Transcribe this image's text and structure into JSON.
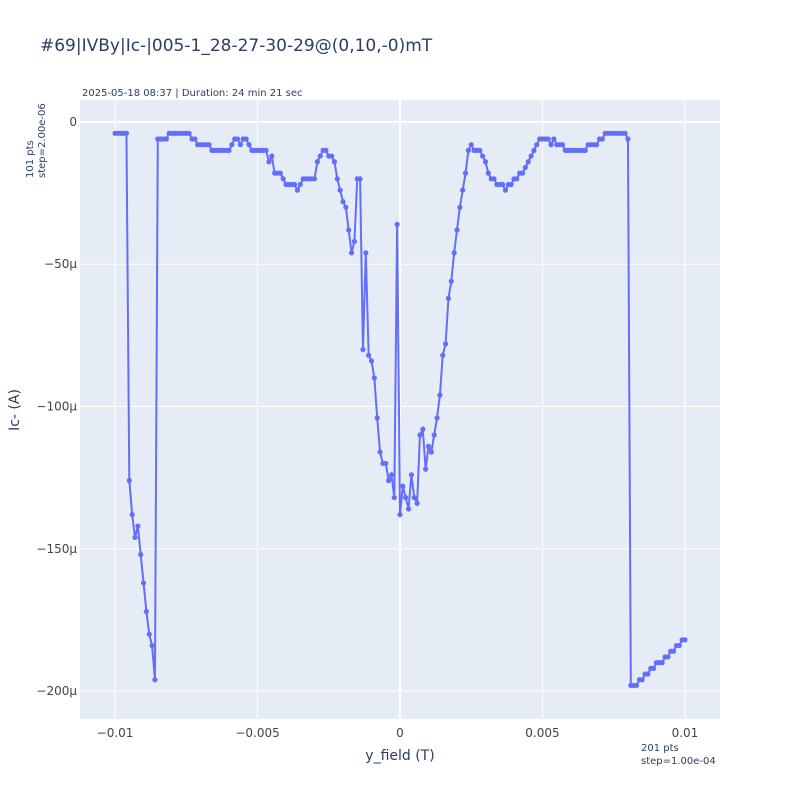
{
  "chart_data": {
    "type": "line",
    "title": "#69|IVBy|Ic-|005-1_28-27-30-29@(0,10,-0)mT",
    "subtitle": "2025-05-18 08:37 | Duration: 24 min 21 sec",
    "y_note": [
      "101 pts",
      "step=2.00e-06"
    ],
    "x_note": [
      "201 pts",
      "step=1.00e-04"
    ],
    "xlabel": "y_field (T)",
    "ylabel": "Ic- (A)",
    "xlim": [
      -0.01123,
      0.01123
    ],
    "ylim": [
      -0.0002098,
      7.7e-06
    ],
    "xticks": [
      {
        "value": -0.01,
        "label": "−0.01"
      },
      {
        "value": -0.005,
        "label": "−0.005"
      },
      0,
      {
        "value": 0.005,
        "label": "0.005"
      },
      {
        "value": 0.01,
        "label": "0.01"
      }
    ],
    "yticks": [
      0,
      {
        "value": -5e-05,
        "label": "−50μ"
      },
      {
        "value": -0.0001,
        "label": "−100μ"
      },
      {
        "value": -0.00015,
        "label": "−150μ"
      },
      {
        "value": -0.0002,
        "label": "−200μ"
      }
    ],
    "grid": true,
    "series": [
      {
        "color": "#636efa",
        "x": [
          -0.01,
          -0.0099,
          -0.0098,
          -0.0097,
          -0.0096,
          -0.0095,
          -0.0094,
          -0.0093,
          -0.0092,
          -0.0091,
          -0.009,
          -0.0089,
          -0.0088,
          -0.0087,
          -0.0086,
          -0.0085,
          -0.0084,
          -0.0083,
          -0.0082,
          -0.0081,
          -0.008,
          -0.0079,
          -0.0078,
          -0.0077,
          -0.0076,
          -0.0075,
          -0.0074,
          -0.0073,
          -0.0072,
          -0.0071,
          -0.007,
          -0.0069,
          -0.0068,
          -0.0067,
          -0.0066,
          -0.0065,
          -0.0064,
          -0.0063,
          -0.0062,
          -0.0061,
          -0.006,
          -0.0059,
          -0.0058,
          -0.0057,
          -0.0056,
          -0.0055,
          -0.0054,
          -0.0053,
          -0.0052,
          -0.0051,
          -0.005,
          -0.0049,
          -0.0048,
          -0.0047,
          -0.0046,
          -0.0045,
          -0.0044,
          -0.0043,
          -0.0042,
          -0.0041,
          -0.004,
          -0.0039,
          -0.0038,
          -0.0037,
          -0.0036,
          -0.0035,
          -0.0034,
          -0.0033,
          -0.0032,
          -0.0031,
          -0.003,
          -0.0029,
          -0.0028,
          -0.0027,
          -0.0026,
          -0.0025,
          -0.0024,
          -0.0023,
          -0.0022,
          -0.0021,
          -0.002,
          -0.0019,
          -0.0018,
          -0.0017,
          -0.0016,
          -0.0015,
          -0.0014,
          -0.0013,
          -0.0012,
          -0.0011,
          -0.001,
          -0.0009,
          -0.0008,
          -0.0007,
          -0.0006,
          -0.0005,
          -0.0004,
          -0.0003,
          -0.0002,
          -0.0001,
          0,
          0.0001,
          0.0002,
          0.0003,
          0.0004,
          0.0005,
          0.0006,
          0.0007,
          0.0008,
          0.0009,
          0.001,
          0.0011,
          0.0012,
          0.0013,
          0.0014,
          0.0015,
          0.0016,
          0.0017,
          0.0018,
          0.0019,
          0.002,
          0.0021,
          0.0022,
          0.0023,
          0.0024,
          0.0025,
          0.0026,
          0.0027,
          0.0028,
          0.0029,
          0.003,
          0.0031,
          0.0032,
          0.0033,
          0.0034,
          0.0035,
          0.0036,
          0.0037,
          0.0038,
          0.0039,
          0.004,
          0.0041,
          0.0042,
          0.0043,
          0.0044,
          0.0045,
          0.0046,
          0.0047,
          0.0048,
          0.0049,
          0.005,
          0.0051,
          0.0052,
          0.0053,
          0.0054,
          0.0055,
          0.0056,
          0.0057,
          0.0058,
          0.0059,
          0.006,
          0.0061,
          0.0062,
          0.0063,
          0.0064,
          0.0065,
          0.0066,
          0.0067,
          0.0068,
          0.0069,
          0.007,
          0.0071,
          0.0072,
          0.0073,
          0.0074,
          0.0075,
          0.0076,
          0.0077,
          0.0078,
          0.0079,
          0.008,
          0.0081,
          0.0082,
          0.0083,
          0.0084,
          0.0085,
          0.0086,
          0.0087,
          0.0088,
          0.0089,
          0.009,
          0.0091,
          0.0092,
          0.0093,
          0.0094,
          0.0095,
          0.0096,
          0.0097,
          0.0098,
          0.0099,
          0.01
        ],
        "values": [
          -4e-06,
          -4e-06,
          -4e-06,
          -4e-06,
          -4e-06,
          -0.000126,
          -0.000138,
          -0.000146,
          -0.000142,
          -0.000152,
          -0.000162,
          -0.000172,
          -0.00018,
          -0.000184,
          -0.000196,
          -6e-06,
          -6e-06,
          -6e-06,
          -6e-06,
          -4e-06,
          -4e-06,
          -4e-06,
          -4e-06,
          -4e-06,
          -4e-06,
          -4e-06,
          -4e-06,
          -6e-06,
          -6e-06,
          -8e-06,
          -8e-06,
          -8e-06,
          -8e-06,
          -8e-06,
          -1e-05,
          -1e-05,
          -1e-05,
          -1e-05,
          -1e-05,
          -1e-05,
          -1e-05,
          -8e-06,
          -6e-06,
          -6e-06,
          -8e-06,
          -6e-06,
          -6e-06,
          -8e-06,
          -1e-05,
          -1e-05,
          -1e-05,
          -1e-05,
          -1e-05,
          -1e-05,
          -1.4e-05,
          -1.2e-05,
          -1.8e-05,
          -1.8e-05,
          -1.8e-05,
          -2e-05,
          -2.2e-05,
          -2.2e-05,
          -2.2e-05,
          -2.2e-05,
          -2.4e-05,
          -2.2e-05,
          -2e-05,
          -2e-05,
          -2e-05,
          -2e-05,
          -2e-05,
          -1.4e-05,
          -1.2e-05,
          -1e-05,
          -1e-05,
          -1.2e-05,
          -1.2e-05,
          -1.4e-05,
          -2e-05,
          -2.4e-05,
          -2.8e-05,
          -3e-05,
          -3.8e-05,
          -4.6e-05,
          -4.2e-05,
          -2e-05,
          -2e-05,
          -8e-05,
          -4.6e-05,
          -8.2e-05,
          -8.4e-05,
          -9e-05,
          -0.000104,
          -0.000116,
          -0.00012,
          -0.00012,
          -0.000126,
          -0.000124,
          -0.000132,
          -3.6e-05,
          -0.000138,
          -0.000128,
          -0.000132,
          -0.000136,
          -0.000124,
          -0.000132,
          -0.000134,
          -0.00011,
          -0.000108,
          -0.000122,
          -0.000114,
          -0.000116,
          -0.00011,
          -0.000104,
          -9.6e-05,
          -8.2e-05,
          -7.8e-05,
          -6.2e-05,
          -5.6e-05,
          -4.6e-05,
          -3.8e-05,
          -3e-05,
          -2.4e-05,
          -1.8e-05,
          -1e-05,
          -8e-06,
          -1e-05,
          -1e-05,
          -1e-05,
          -1.2e-05,
          -1.4e-05,
          -1.8e-05,
          -2e-05,
          -2e-05,
          -2.2e-05,
          -2.2e-05,
          -2.2e-05,
          -2.4e-05,
          -2.2e-05,
          -2.2e-05,
          -2e-05,
          -2e-05,
          -1.8e-05,
          -1.8e-05,
          -1.6e-05,
          -1.4e-05,
          -1.2e-05,
          -1e-05,
          -8e-06,
          -6e-06,
          -6e-06,
          -6e-06,
          -6e-06,
          -8e-06,
          -6e-06,
          -8e-06,
          -8e-06,
          -8e-06,
          -1e-05,
          -1e-05,
          -1e-05,
          -1e-05,
          -1e-05,
          -1e-05,
          -1e-05,
          -1e-05,
          -8e-06,
          -8e-06,
          -8e-06,
          -8e-06,
          -6e-06,
          -6e-06,
          -4e-06,
          -4e-06,
          -4e-06,
          -4e-06,
          -4e-06,
          -4e-06,
          -4e-06,
          -4e-06,
          -6e-06,
          -0.000198,
          -0.000198,
          -0.000198,
          -0.000196,
          -0.000196,
          -0.000194,
          -0.000194,
          -0.000192,
          -0.000192,
          -0.00019,
          -0.00019,
          -0.00019,
          -0.000188,
          -0.000188,
          -0.000186,
          -0.000186,
          -0.000184,
          -0.000184,
          -0.000182,
          -0.000182
        ]
      }
    ]
  }
}
